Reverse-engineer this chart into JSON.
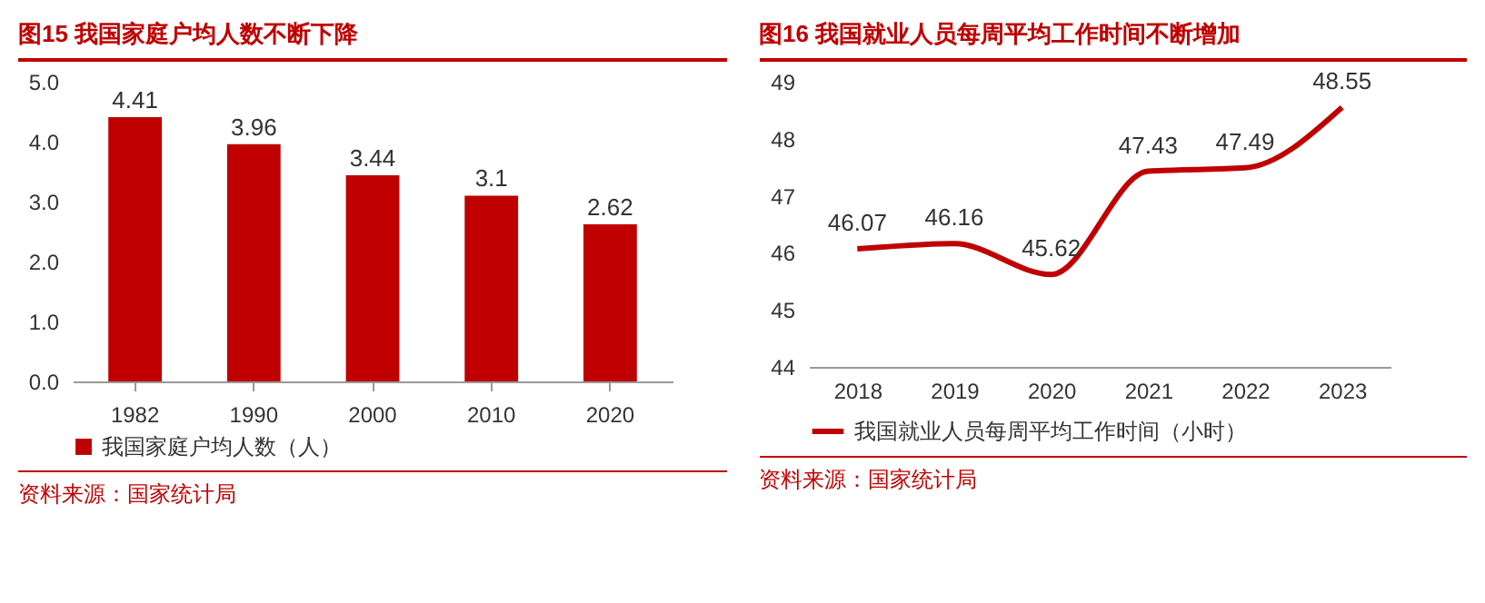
{
  "chart_data": [
    {
      "type": "bar",
      "title": "图15  我国家庭户均人数不断下降",
      "categories": [
        "1982",
        "1990",
        "2000",
        "2010",
        "2020"
      ],
      "series": [
        {
          "name": "我国家庭户均人数（人）",
          "color": "#c00000",
          "values": [
            4.41,
            3.96,
            3.44,
            3.1,
            2.62
          ]
        }
      ],
      "ylim": [
        0,
        5
      ],
      "yticks": [
        {
          "value": 0,
          "label": "0.0"
        },
        {
          "value": 1,
          "label": "1.0"
        },
        {
          "value": 2,
          "label": "2.0"
        },
        {
          "value": 3,
          "label": "3.0"
        },
        {
          "value": 4,
          "label": "4.0"
        },
        {
          "value": 5,
          "label": "5.0"
        }
      ],
      "data_labels": true,
      "legend": "bottom",
      "grid": false,
      "annotations": [
        "资料来源：国家统计局"
      ]
    },
    {
      "type": "line",
      "title": "图16  我国就业人员每周平均工作时间不断增加",
      "categories": [
        "2018",
        "2019",
        "2020",
        "2021",
        "2022",
        "2023"
      ],
      "series": [
        {
          "name": "我国就业人员每周平均工作时间（小时）",
          "color": "#c00000",
          "values": [
            46.07,
            46.16,
            45.62,
            47.43,
            47.49,
            48.55
          ]
        }
      ],
      "ylim": [
        44,
        49
      ],
      "yticks": [
        44,
        45,
        46,
        47,
        48,
        49
      ],
      "marker": "none",
      "line_style": "solid",
      "data_labels": true,
      "legend": "bottom",
      "grid": false,
      "annotations": [
        "资料来源：国家统计局"
      ]
    }
  ]
}
